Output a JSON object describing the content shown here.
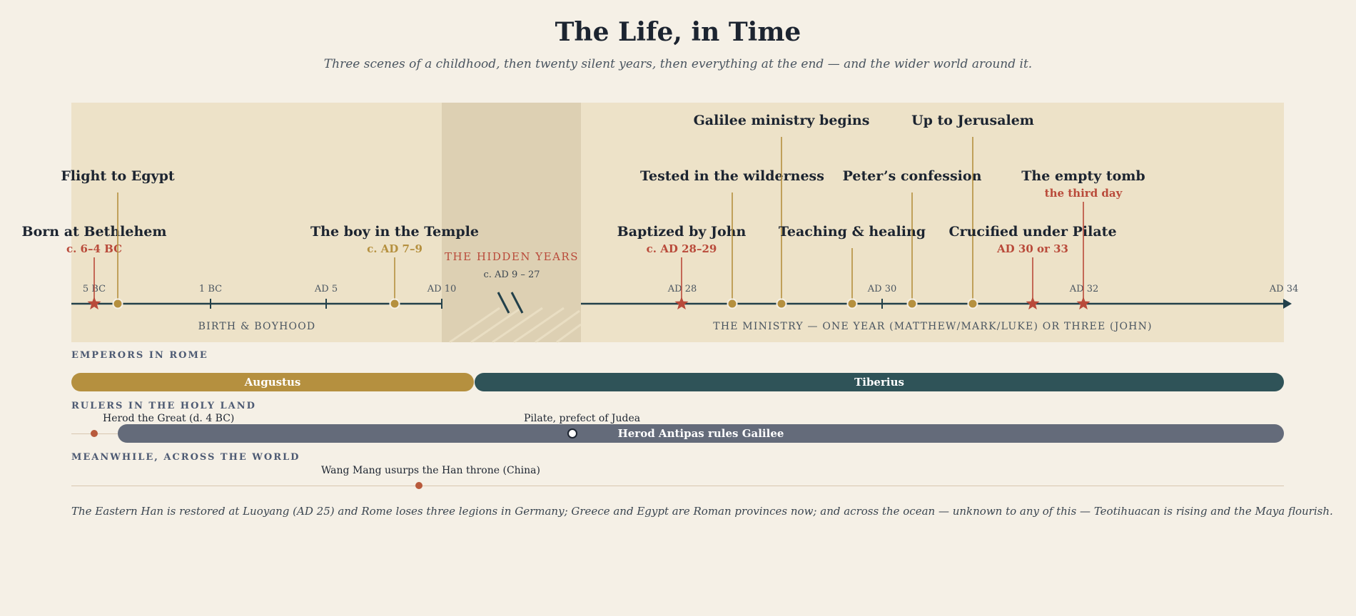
{
  "title": "The Life, in Time",
  "subtitle": "Three scenes of a childhood, then twenty silent years, then everything at the end — and the wider world around it.",
  "colors": {
    "gold": "#b5903f",
    "red": "#b94a3a",
    "teal": "#2f5358",
    "slate": "#646b7a",
    "axis": "#22404a"
  },
  "axis_ticks": [
    "5 BC",
    "1 BC",
    "AD 5",
    "AD 10",
    "AD 28",
    "AD 30",
    "AD 32",
    "AD 34"
  ],
  "hidden_years": {
    "label": "THE HIDDEN YEARS",
    "range": "c. AD 9 – 27"
  },
  "periods": [
    {
      "label": "BIRTH & BOYHOOD"
    },
    {
      "label": "THE MINISTRY — ONE YEAR (MATTHEW/MARK/LUKE) OR THREE (JOHN)"
    }
  ],
  "events": [
    {
      "title": "Born at Bethlehem",
      "date": "c. 6–4 BC",
      "marker": "star"
    },
    {
      "title": "Flight to Egypt",
      "date": "",
      "marker": "dot"
    },
    {
      "title": "The boy in the Temple",
      "date": "c. AD 7–9",
      "marker": "dot"
    },
    {
      "title": "Baptized by John",
      "date": "c. AD 28–29",
      "marker": "star"
    },
    {
      "title": "Tested in the wilderness",
      "date": "",
      "marker": "dot"
    },
    {
      "title": "Galilee ministry begins",
      "date": "",
      "marker": "dot"
    },
    {
      "title": "Teaching & healing",
      "date": "",
      "marker": "dot"
    },
    {
      "title": "Peter’s confession",
      "date": "",
      "marker": "dot"
    },
    {
      "title": "Up to Jerusalem",
      "date": "",
      "marker": "dot"
    },
    {
      "title": "Crucified under Pilate",
      "date": "AD 30 or 33",
      "marker": "star"
    },
    {
      "title": "The empty tomb",
      "date": "the third day",
      "marker": "star"
    }
  ],
  "emperors": {
    "label": "EMPERORS IN ROME",
    "bars": [
      {
        "name": "Augustus"
      },
      {
        "name": "Tiberius"
      }
    ]
  },
  "rulers": {
    "label": "RULERS IN THE HOLY LAND",
    "herod": "Herod the Great (d. 4 BC)",
    "pilate": "Pilate, prefect of Judea",
    "antipas": "Herod Antipas rules Galilee"
  },
  "world": {
    "label": "MEANWHILE, ACROSS THE WORLD",
    "wang_mang": "Wang Mang usurps the Han throne (China)",
    "note": "The Eastern Han is restored at Luoyang (AD 25) and Rome loses three legions in Germany; Greece and Egypt are Roman provinces now; and across the ocean — unknown to any of this — Teotihuacan is rising and the Maya flourish."
  }
}
